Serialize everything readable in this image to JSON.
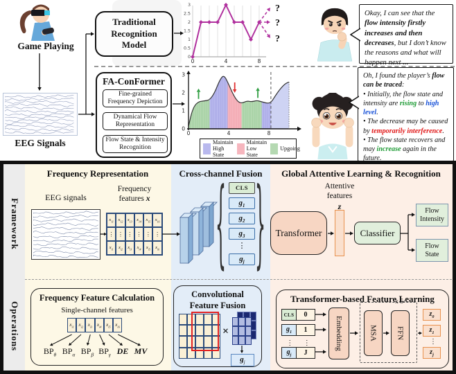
{
  "colors": {
    "magenta": "#b0309e",
    "green_arrow": "#2f9e41",
    "red_arrow": "#e03030",
    "high_state": "#b9b9ee",
    "low_state": "#f6b6be",
    "upgoing": "#b5d9b2",
    "forecast": "#ced3f3",
    "panel_yellow": "#fdf8e6",
    "panel_blue": "#e3edf8",
    "panel_peach": "#fdefe6",
    "cls_green": "#daecd4",
    "token_blue": "#d9eaf8",
    "peach_box": "#f7d6c3",
    "green_box": "#e1efdc",
    "orange_border": "#e8914e"
  },
  "top": {
    "game_playing_label": "Game Playing",
    "eeg_signals_label": "EEG Signals",
    "traditional_model_lines": [
      "Traditional",
      "Recognition",
      "Model"
    ],
    "fa_conformer": {
      "title": "FA-ConFormer",
      "items": [
        [
          "Fine-grained",
          "Frequency Depiction"
        ],
        [
          "Dynamical Flow",
          "Representation"
        ],
        [
          "Flow State & Intensity",
          "Recognition"
        ]
      ]
    },
    "bubble1": {
      "segments": [
        {
          "t": "Okay, I can see that the "
        },
        {
          "t": "flow intensity firstly increases and then decreases",
          "b": true
        },
        {
          "t": ", but I don’t know the reasons and what will happen next ..."
        }
      ]
    },
    "bubble2": {
      "lines": [
        [
          {
            "t": "Oh, I found the player’s "
          },
          {
            "t": "flow can be traced",
            "b": true
          },
          {
            "t": ":"
          }
        ],
        [
          {
            "t": "• Initially, the flow state and intensity are "
          },
          {
            "t": "rising",
            "b": true,
            "c": "#1d9a34"
          },
          {
            "t": " to "
          },
          {
            "t": "high level",
            "b": true,
            "c": "#1a53d8"
          },
          {
            "t": "."
          }
        ],
        [
          {
            "t": "• The decrease may be caused by "
          },
          {
            "t": "temporarily interference",
            "b": true,
            "c": "#e01515"
          },
          {
            "t": "."
          }
        ],
        [
          {
            "t": "• The flow state recovers and may "
          },
          {
            "t": "increase",
            "b": true,
            "c": "#1d9a34"
          },
          {
            "t": " again in the future."
          }
        ]
      ]
    }
  },
  "chart_data": [
    {
      "type": "line",
      "title": "",
      "x": [
        0,
        1,
        2,
        3,
        4,
        5,
        6,
        7,
        8
      ],
      "y": [
        0,
        2,
        2,
        2,
        3,
        2,
        2,
        1,
        2
      ],
      "x_ticks": [
        0,
        4,
        8
      ],
      "y_ticks": [
        0,
        0.5,
        1,
        1.5,
        2,
        2.5,
        3
      ],
      "ylim": [
        0,
        3
      ],
      "grid": "vertical",
      "line_color": "#b0309e",
      "future_labels": [
        "?",
        "?",
        "?"
      ]
    },
    {
      "type": "area",
      "x_ticks": [
        0,
        4,
        8
      ],
      "y_ticks": [
        0,
        1,
        2,
        3
      ],
      "ylim": [
        0,
        3
      ],
      "curve": [
        [
          0,
          0.15
        ],
        [
          0.4,
          1.1
        ],
        [
          0.9,
          1.5
        ],
        [
          1.6,
          1.55
        ],
        [
          2.1,
          1.6
        ],
        [
          2.6,
          2.0
        ],
        [
          3.1,
          2.7
        ],
        [
          3.5,
          3.0
        ],
        [
          3.9,
          2.6
        ],
        [
          4.4,
          1.95
        ],
        [
          4.9,
          1.5
        ],
        [
          5.3,
          1.42
        ],
        [
          5.8,
          1.55
        ],
        [
          6.3,
          1.5
        ],
        [
          6.8,
          1.58
        ],
        [
          7.3,
          1.5
        ],
        [
          7.8,
          1.42
        ],
        [
          8.2,
          1.45
        ],
        [
          8.6,
          1.8
        ],
        [
          9.1,
          2.2
        ],
        [
          9.6,
          2.5
        ],
        [
          10,
          2.6
        ]
      ],
      "regions": [
        {
          "from": 0,
          "to": 2.1,
          "kind": "upgoing"
        },
        {
          "from": 2.1,
          "to": 3.9,
          "kind": "high"
        },
        {
          "from": 3.9,
          "to": 5.3,
          "kind": "low"
        },
        {
          "from": 5.3,
          "to": 7.3,
          "kind": "upgoing"
        },
        {
          "from": 7.3,
          "to": 8.2,
          "kind": "high"
        },
        {
          "from": 8.2,
          "to": 10,
          "kind": "forecast"
        }
      ],
      "region_colors": {
        "high": "#b9b9ee",
        "low": "#f6b6be",
        "upgoing": "#b5d9b2",
        "forecast": "#ced3f3"
      },
      "hatch_colors": {
        "high": "#9a9ade",
        "low": "#ef9aa6",
        "upgoing": "#93c793"
      },
      "now_line_x": 8.2,
      "annotations": [
        {
          "x": 1.0,
          "dir": "up",
          "color": "#2f9e41"
        },
        {
          "x": 4.6,
          "dir": "down",
          "color": "#e03030"
        },
        {
          "x": 6.9,
          "dir": "up",
          "color": "#2f9e41"
        }
      ],
      "legend": [
        {
          "kind": "high",
          "label": "Maintain High State",
          "label_lines": [
            "Maintain",
            "High State"
          ]
        },
        {
          "kind": "low",
          "label": "Maintain Low State",
          "label_lines": [
            "Maintain",
            "Low State"
          ]
        },
        {
          "kind": "upgoing",
          "label": "Upgoing",
          "label_lines": [
            "Upgoing"
          ]
        }
      ]
    }
  ],
  "framework": {
    "row_label": "Framework",
    "freq_panel": {
      "title": "Frequency Representation",
      "eeg_label": "EEG signals",
      "features_label_lines": [
        "Frequency",
        "features"
      ],
      "features_var": "x",
      "matrix": {
        "base": "x",
        "top": [
          "11",
          "12",
          "13",
          "14",
          "15",
          "16"
        ],
        "dots": "⋮",
        "bottom": [
          "i1",
          "i2",
          "i3",
          "i4",
          "i5",
          "i6"
        ]
      }
    },
    "cross_panel": {
      "title": "Cross-channel Fusion",
      "cls": "CLS",
      "token_base": "g",
      "tokens": [
        "1",
        "2",
        "3",
        "⋮",
        "j"
      ],
      "brace_left": "{",
      "brace_right": "}"
    },
    "global_panel": {
      "title": "Global Attentive Learning & Recognition",
      "attentive_lines": [
        "Attentive",
        "features"
      ],
      "z_var": "z",
      "transformer": "Transformer",
      "classifier": "Classifier",
      "outputs": [
        [
          "Flow",
          "Intensity"
        ],
        [
          "Flow",
          "State"
        ]
      ]
    }
  },
  "operations": {
    "row_label": "Operations",
    "freq_calc": {
      "title": "Frequency Feature Calculation",
      "subtitle": "Single-channel features",
      "cell_base": "x",
      "cells": [
        "i1",
        "i2",
        "i3",
        "i4",
        "i5",
        "i6"
      ],
      "outputs": [
        {
          "b": "BP",
          "s": "θ"
        },
        {
          "b": "BP",
          "s": "α"
        },
        {
          "b": "BP",
          "s": "β"
        },
        {
          "b": "BP",
          "s": "γ"
        },
        {
          "t": "DE"
        },
        {
          "t": "MV"
        }
      ]
    },
    "conv_fusion": {
      "title_lines": [
        "Convolutional",
        "Feature Fusion"
      ],
      "times": "×",
      "gj_base": "g",
      "gj_sub": "j"
    },
    "transformer_learning": {
      "title": "Transformer-based Feature Learning",
      "rows": [
        {
          "kind": "cls",
          "left": "CLS",
          "right": "0"
        },
        {
          "kind": "g",
          "left_base": "g",
          "left_sub": "1",
          "right": "1"
        },
        {
          "kind": "dots",
          "left": "⋮",
          "right": "⋮"
        },
        {
          "kind": "g",
          "left_base": "g",
          "left_sub": "j",
          "right": "J"
        }
      ],
      "embedding": "Embedding",
      "repeat": "x 5",
      "msa": "MSA",
      "ffn": "FFN",
      "out_base": "z",
      "outputs": [
        "0",
        "1",
        "⋮",
        "j"
      ]
    }
  }
}
